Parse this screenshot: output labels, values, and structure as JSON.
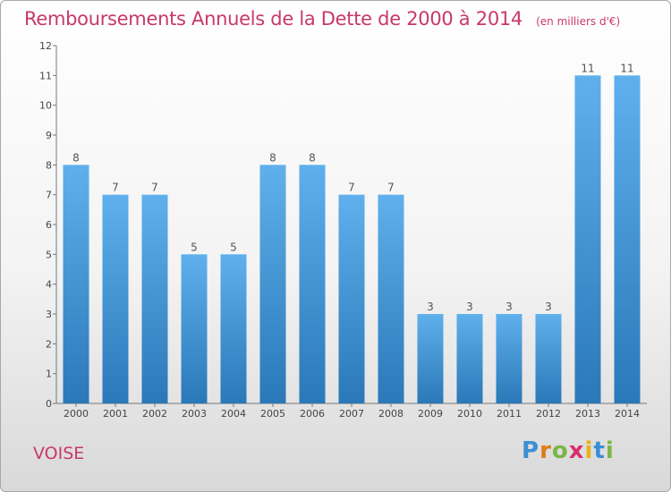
{
  "title": "Remboursements Annuels de la Dette de 2000 à 2014",
  "unit_note": "(en milliers d'€)",
  "commune": "VOISE",
  "logo": {
    "letters": [
      "P",
      "r",
      "o",
      "x",
      "i",
      "t",
      "i"
    ],
    "colors": [
      "#3a8fd6",
      "#e07b1a",
      "#7ab648",
      "#d62f6e",
      "#e8b217",
      "#3a8fd6",
      "#7ab648"
    ]
  },
  "chart_data": {
    "type": "bar",
    "title": "Remboursements Annuels de la Dette de 2000 à 2014",
    "xlabel": "",
    "ylabel": "",
    "categories": [
      "2000",
      "2001",
      "2002",
      "2003",
      "2004",
      "2005",
      "2006",
      "2007",
      "2008",
      "2009",
      "2010",
      "2011",
      "2012",
      "2013",
      "2014"
    ],
    "values": [
      8,
      7,
      7,
      5,
      5,
      8,
      8,
      7,
      7,
      3,
      3,
      3,
      3,
      11,
      11
    ],
    "ylim": [
      0,
      12
    ],
    "yticks": [
      0,
      1,
      2,
      3,
      4,
      5,
      6,
      7,
      8,
      9,
      10,
      11,
      12
    ],
    "grid": false,
    "legend": "none",
    "bar_color_top": "#5fb0ec",
    "bar_color_bottom": "#2a78b8"
  }
}
